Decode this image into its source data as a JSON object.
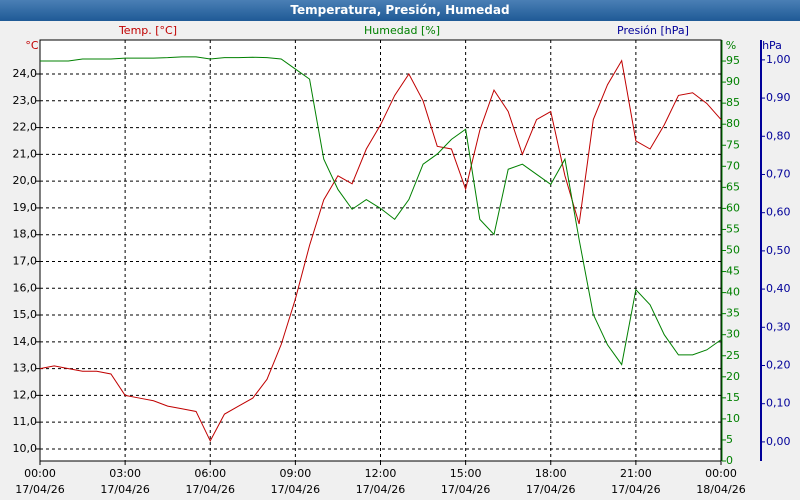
{
  "chart_data": {
    "type": "line",
    "title": "Temperatura, Presión, Humedad",
    "y_label": "Temp. [°C]",
    "y_unit": "°C",
    "y2_label": "Humedad [%]",
    "y2_unit": "%",
    "y3_label": "Presión [hPa]",
    "y3_unit": "hPa",
    "x": [
      0,
      0.5,
      1,
      1.5,
      2,
      2.5,
      3,
      3.5,
      4,
      4.5,
      5,
      5.5,
      6,
      6.5,
      7,
      7.5,
      8,
      8.5,
      9,
      9.5,
      10,
      10.5,
      11,
      11.5,
      12,
      12.5,
      13,
      13.5,
      14,
      14.5,
      15,
      15.5,
      16,
      16.5,
      17,
      17.5,
      18,
      18.5,
      19,
      19.5,
      20,
      20.5,
      21,
      21.5,
      22,
      22.5,
      23,
      23.5,
      24
    ],
    "xlim": [
      0,
      24
    ],
    "xticks": [
      {
        "value": 0,
        "label": "00:00",
        "date": "17/04/26"
      },
      {
        "value": 3,
        "label": "03:00",
        "date": "17/04/26"
      },
      {
        "value": 6,
        "label": "06:00",
        "date": "17/04/26"
      },
      {
        "value": 9,
        "label": "09:00",
        "date": "17/04/26"
      },
      {
        "value": 12,
        "label": "12:00",
        "date": "17/04/26"
      },
      {
        "value": 15,
        "label": "15:00",
        "date": "17/04/26"
      },
      {
        "value": 18,
        "label": "18:00",
        "date": "17/04/26"
      },
      {
        "value": 21,
        "label": "21:00",
        "date": "17/04/26"
      },
      {
        "value": 24,
        "label": "00:00",
        "date": "18/04/26"
      }
    ],
    "ylim": [
      9.55,
      25.27
    ],
    "yticks": [
      {
        "value": 10,
        "label": "10,0"
      },
      {
        "value": 11,
        "label": "11,0"
      },
      {
        "value": 12,
        "label": "12,0"
      },
      {
        "value": 13,
        "label": "13,0"
      },
      {
        "value": 14,
        "label": "14,0"
      },
      {
        "value": 15,
        "label": "15,0"
      },
      {
        "value": 16,
        "label": "16,0"
      },
      {
        "value": 17,
        "label": "17,0"
      },
      {
        "value": 18,
        "label": "18,0"
      },
      {
        "value": 19,
        "label": "19,0"
      },
      {
        "value": 20,
        "label": "20,0"
      },
      {
        "value": 21,
        "label": "21,0"
      },
      {
        "value": 22,
        "label": "22,0"
      },
      {
        "value": 23,
        "label": "23,0"
      },
      {
        "value": 24,
        "label": "24,0"
      }
    ],
    "y2lim": [
      0,
      100
    ],
    "y2ticks": [
      0,
      5,
      10,
      15,
      20,
      25,
      30,
      35,
      40,
      45,
      50,
      55,
      60,
      65,
      70,
      75,
      80,
      85,
      90,
      95
    ],
    "y3lim": [
      -0.05,
      1.052
    ],
    "y3ticks": [
      {
        "value": 0,
        "label": "0,00"
      },
      {
        "value": 0.1,
        "label": "0,10"
      },
      {
        "value": 0.2,
        "label": "0,20"
      },
      {
        "value": 0.3,
        "label": "0,30"
      },
      {
        "value": 0.4,
        "label": "0,40"
      },
      {
        "value": 0.5,
        "label": "0,50"
      },
      {
        "value": 0.6,
        "label": "0,60"
      },
      {
        "value": 0.7,
        "label": "0,70"
      },
      {
        "value": 0.8,
        "label": "0,80"
      },
      {
        "value": 0.9,
        "label": "0,90"
      },
      {
        "value": 1,
        "label": "1,00"
      }
    ],
    "grid": true,
    "colors": {
      "y": "#c00000",
      "y2": "#008000",
      "y3": "#000099"
    },
    "series": [
      {
        "name": "Temp. [°C]",
        "axis": "y",
        "color": "#c00000",
        "values": [
          13.0,
          13.1,
          13.0,
          12.9,
          12.9,
          12.8,
          12.0,
          11.9,
          11.8,
          11.6,
          11.5,
          11.4,
          10.3,
          11.3,
          11.6,
          11.9,
          12.6,
          13.9,
          15.6,
          17.6,
          19.3,
          20.2,
          19.9,
          21.2,
          22.1,
          23.2,
          24.0,
          23.0,
          21.3,
          21.2,
          19.7,
          21.9,
          23.4,
          22.6,
          21.0,
          22.3,
          22.6,
          20.2,
          18.4,
          22.3,
          23.6,
          24.5,
          21.5,
          21.2,
          22.1,
          23.2,
          23.3,
          22.9,
          22.3
        ]
      },
      {
        "name": "Humedad [%]",
        "axis": "y2",
        "color": "#008000",
        "values": [
          95,
          95,
          95,
          95.5,
          95.5,
          95.5,
          95.7,
          95.7,
          95.7,
          95.8,
          96,
          96,
          95.5,
          95.8,
          95.8,
          95.9,
          95.8,
          95.5,
          93.1,
          90.7,
          71.7,
          64.5,
          59.8,
          62.1,
          60,
          57.4,
          62.1,
          70.5,
          72.9,
          76.4,
          78.8,
          57.4,
          53.8,
          69.3,
          70.5,
          68.1,
          65.7,
          71.7,
          52.6,
          34.8,
          27.6,
          22.9,
          40.7,
          37.1,
          30,
          25.2,
          25.2,
          26.4,
          28.8
        ]
      }
    ]
  }
}
